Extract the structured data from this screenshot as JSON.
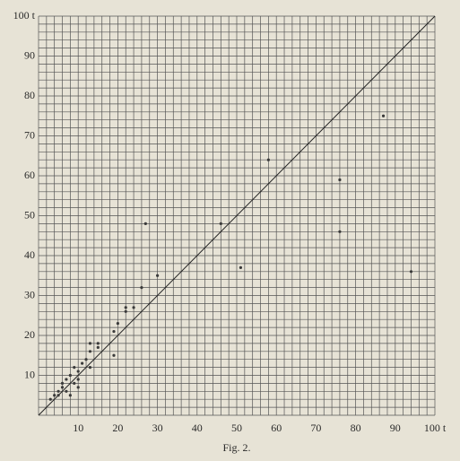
{
  "chart_data": {
    "type": "scatter",
    "caption": "Fig. 2.",
    "xlim": [
      0,
      100
    ],
    "ylim": [
      0,
      100
    ],
    "xticks": [
      10,
      20,
      30,
      40,
      50,
      60,
      70,
      80,
      90,
      {
        "value": 100,
        "label": "100 t"
      }
    ],
    "yticks": [
      10,
      20,
      30,
      40,
      50,
      60,
      70,
      80,
      90,
      {
        "value": 100,
        "label": "100 t"
      }
    ],
    "grid_ticks": [
      0,
      2,
      4,
      6,
      8,
      10,
      12,
      14,
      16,
      18,
      20,
      22,
      24,
      26,
      28,
      30,
      32,
      34,
      36,
      38,
      40,
      42,
      44,
      46,
      48,
      50,
      52,
      54,
      56,
      58,
      60,
      62,
      64,
      66,
      68,
      70,
      72,
      74,
      76,
      78,
      80,
      82,
      84,
      86,
      88,
      90,
      92,
      94,
      96,
      98,
      100
    ],
    "diagonal": true,
    "color": "#3a3a3a",
    "x": [
      3,
      4,
      5,
      5,
      6,
      6,
      7,
      7,
      8,
      8,
      9,
      9,
      10,
      10,
      10,
      11,
      12,
      13,
      13,
      13,
      15,
      15,
      19,
      19,
      20,
      22,
      22,
      24,
      26,
      27,
      30,
      46,
      51,
      58,
      76,
      76,
      87,
      94
    ],
    "y": [
      4,
      5,
      6,
      5,
      7,
      8,
      9,
      6,
      5,
      10,
      8,
      12,
      11,
      9,
      7,
      13,
      14,
      12,
      16,
      18,
      18,
      17,
      15,
      21,
      23,
      26,
      27,
      27,
      32,
      48,
      35,
      48,
      37,
      64,
      59,
      46,
      75,
      36
    ]
  }
}
